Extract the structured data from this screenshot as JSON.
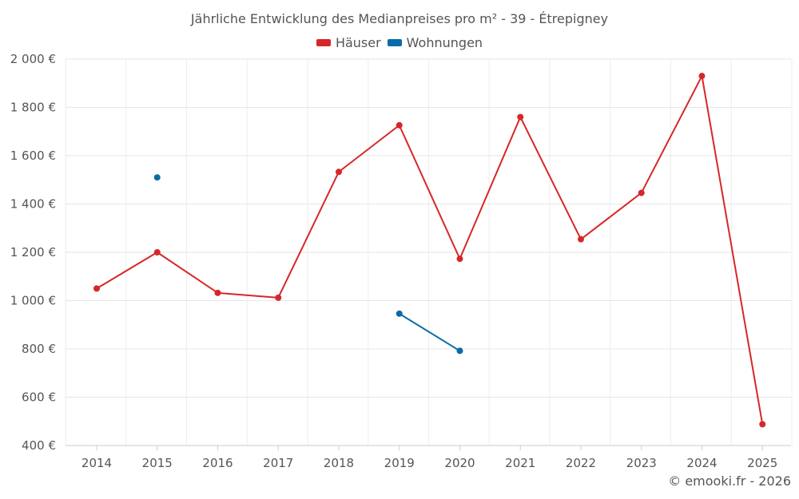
{
  "chart_data": {
    "type": "line",
    "title": "Jährliche Entwicklung des Medianpreises pro m² - 39 - Étrepigney",
    "categories": [
      "2014",
      "2015",
      "2016",
      "2017",
      "2018",
      "2019",
      "2020",
      "2021",
      "2022",
      "2023",
      "2024",
      "2025"
    ],
    "series": [
      {
        "name": "Häuser",
        "color": "#d62728",
        "values": [
          1050,
          1200,
          1032,
          1012,
          1533,
          1726,
          1173,
          1760,
          1254,
          1446,
          1930,
          488
        ]
      },
      {
        "name": "Wohnungen",
        "color": "#0b6ba8",
        "values": [
          null,
          1510,
          null,
          null,
          null,
          946,
          792,
          null,
          null,
          null,
          null,
          null
        ]
      }
    ],
    "ylim": [
      400,
      2000
    ],
    "yticks": [
      400,
      600,
      800,
      1000,
      1200,
      1400,
      1600,
      1800,
      2000
    ],
    "ytick_labels": [
      "400 €",
      "600 €",
      "800 €",
      "1 000 €",
      "1 200 €",
      "1 400 €",
      "1 600 €",
      "1 800 €",
      "2 000 €"
    ],
    "xlabel": "",
    "ylabel": "",
    "grid": true,
    "legend_position": "top-center"
  },
  "credit": "© emooki.fr - 2026"
}
